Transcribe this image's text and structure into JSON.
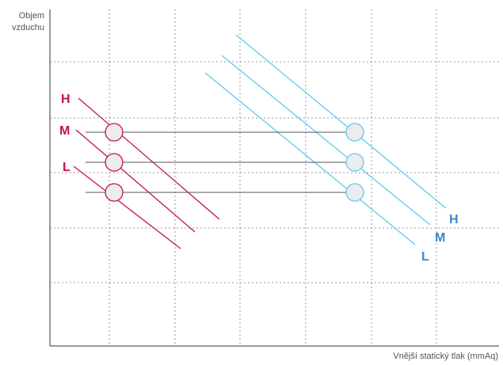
{
  "chart_data": {
    "type": "line",
    "ylabel_lines": [
      "Objem",
      "vzduchu"
    ],
    "xlabel": "Vnější statický tlak (mmAq)",
    "grid": true,
    "colors": {
      "left": "#c0134e",
      "right": "#3f86c7",
      "right_line": "#5ecbec",
      "operating": "#555555"
    },
    "series_left": [
      {
        "name": "H",
        "label_color": "#c0134e"
      },
      {
        "name": "M",
        "label_color": "#c0134e"
      },
      {
        "name": "L",
        "label_color": "#c0134e"
      }
    ],
    "series_right": [
      {
        "name": "H",
        "label_color": "#3f86c7"
      },
      {
        "name": "M",
        "label_color": "#3f86c7"
      },
      {
        "name": "L",
        "label_color": "#3f86c7"
      }
    ]
  }
}
